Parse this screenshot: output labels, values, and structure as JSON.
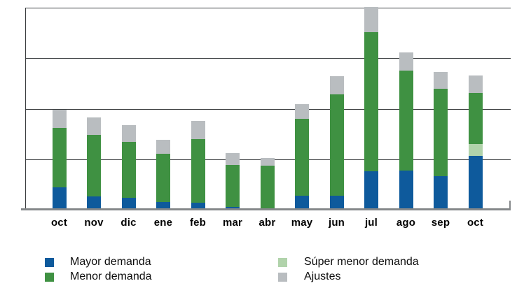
{
  "chart_data": {
    "type": "bar",
    "stacked": true,
    "title": "",
    "xlabel": "",
    "ylabel": "",
    "categories": [
      "oct",
      "nov",
      "dic",
      "ene",
      "feb",
      "mar",
      "abr",
      "may",
      "jun",
      "jul",
      "ago",
      "sep",
      "oct"
    ],
    "series": [
      {
        "name": "Mayor demanda",
        "color": "#0e5a9c",
        "values": [
          44,
          26,
          23,
          15,
          14,
          6,
          3,
          28,
          27,
          76,
          77,
          67,
          107
        ]
      },
      {
        "name": "Súper menor demanda",
        "color": "#b1d3ab",
        "values": [
          0,
          0,
          0,
          0,
          0,
          0,
          0,
          0,
          0,
          0,
          0,
          0,
          23
        ]
      },
      {
        "name": "Menor demanda",
        "color": "#3f9142",
        "values": [
          118,
          122,
          111,
          96,
          126,
          82,
          84,
          152,
          202,
          276,
          198,
          173,
          101
        ]
      },
      {
        "name": "Ajustes",
        "color": "#b9bdc0",
        "values": [
          36,
          35,
          34,
          27,
          36,
          24,
          16,
          29,
          35,
          49,
          37,
          32,
          35
        ]
      }
    ],
    "ylim": [
      0,
      400
    ],
    "gridline_step": 100,
    "y_tick_labels": [],
    "grid": true,
    "legend_position": "bottom"
  },
  "legend": {
    "columns": [
      {
        "items": [
          {
            "label": "Mayor demanda",
            "color": "#0e5a9c"
          },
          {
            "label": "Menor demanda",
            "color": "#3f9142"
          }
        ]
      },
      {
        "items": [
          {
            "label": "Súper menor demanda",
            "color": "#b1d3ab"
          },
          {
            "label": "Ajustes",
            "color": "#b9bdc0"
          }
        ]
      }
    ]
  }
}
